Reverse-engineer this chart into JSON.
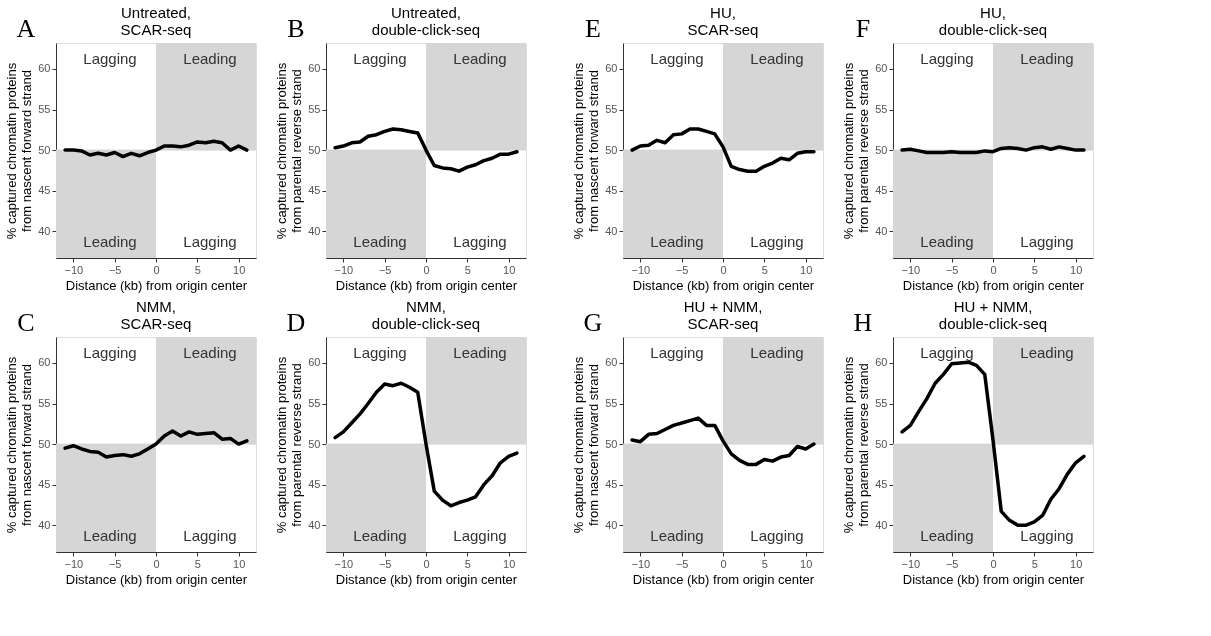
{
  "chart_data": [
    {
      "type": "line",
      "title": "Untreated,\nSCAR-seq",
      "xlabel": "Distance (kb) from origin center",
      "ylabel": "% captured chromatin proteins\nfrom nascent forward strand",
      "x": [
        -11,
        -10,
        -9,
        -8,
        -7,
        -6,
        -5,
        -4,
        -3,
        -2,
        -1,
        0,
        1,
        2,
        3,
        4,
        5,
        6,
        7,
        8,
        9,
        10,
        11
      ],
      "series": [
        {
          "color": "#000000",
          "values": [
            50.0,
            50.0,
            49.9,
            49.4,
            49.6,
            49.4,
            49.7,
            49.2,
            49.6,
            49.3,
            49.7,
            50.0,
            50.5,
            50.5,
            50.4,
            50.6,
            51.0,
            50.9,
            51.1,
            50.9,
            50.0,
            50.5,
            50.0
          ]
        }
      ],
      "xlim": [
        -12.1,
        12.1
      ],
      "ylim": [
        36.7,
        63.2
      ],
      "xticks": [
        -10,
        -5,
        0,
        5,
        10
      ],
      "yticks": [
        40,
        45,
        50,
        55,
        60
      ],
      "bands": [
        {
          "axis": "x",
          "from": 0,
          "to": 12.1,
          "color": "#d6d6d6"
        },
        {
          "axis": "x",
          "from": -12.1,
          "to": 0,
          "color": "#d6d6d6"
        }
      ],
      "ref_lines": [
        {
          "axis": "y",
          "value": 50,
          "color": "#d6d6d6"
        }
      ],
      "annotations": [
        "A",
        "Lagging",
        "Leading",
        "Leading",
        "Lagging"
      ]
    },
    {
      "type": "line",
      "title": "Untreated,\ndouble-click-seq",
      "xlabel": "Distance (kb) from origin center",
      "ylabel": "% captured chromatin proteins\nfrom parental reverse strand",
      "x": [
        -11,
        -10,
        -9,
        -8,
        -7,
        -6,
        -5,
        -4,
        -3,
        -2,
        -1,
        0,
        1,
        2,
        3,
        4,
        5,
        6,
        7,
        8,
        9,
        10,
        11
      ],
      "series": [
        {
          "color": "#000000",
          "values": [
            50.3,
            50.5,
            50.9,
            51.0,
            51.7,
            51.9,
            52.3,
            52.6,
            52.5,
            52.3,
            52.1,
            50.0,
            48.1,
            47.8,
            47.7,
            47.4,
            47.9,
            48.2,
            48.7,
            49.0,
            49.5,
            49.5,
            49.8
          ]
        }
      ],
      "xlim": [
        -12.1,
        12.1
      ],
      "ylim": [
        36.7,
        63.2
      ],
      "xticks": [
        -10,
        -5,
        0,
        5,
        10
      ],
      "yticks": [
        40,
        45,
        50,
        55,
        60
      ],
      "bands": [
        {
          "axis": "x",
          "from": 0,
          "to": 12.1,
          "color": "#d6d6d6"
        },
        {
          "axis": "x",
          "from": -12.1,
          "to": 0,
          "color": "#d6d6d6"
        }
      ],
      "ref_lines": [
        {
          "axis": "y",
          "value": 50,
          "color": "#d6d6d6"
        }
      ],
      "annotations": [
        "B",
        "Lagging",
        "Leading",
        "Leading",
        "Lagging"
      ]
    },
    {
      "type": "line",
      "title": "HU,\nSCAR-seq",
      "xlabel": "Distance (kb) from origin center",
      "ylabel": "% captured chromatin proteins\nfrom nascent forward strand",
      "x": [
        -11,
        -10,
        -9,
        -8,
        -7,
        -6,
        -5,
        -4,
        -3,
        -2,
        -1,
        0,
        1,
        2,
        3,
        4,
        5,
        6,
        7,
        8,
        9,
        10,
        11
      ],
      "series": [
        {
          "color": "#000000",
          "values": [
            50.0,
            50.5,
            50.6,
            51.2,
            50.9,
            51.9,
            52.0,
            52.6,
            52.6,
            52.3,
            52.0,
            50.4,
            48.0,
            47.6,
            47.4,
            47.4,
            48.0,
            48.4,
            49.0,
            48.8,
            49.6,
            49.8,
            49.8
          ]
        }
      ],
      "xlim": [
        -12.1,
        12.1
      ],
      "ylim": [
        36.7,
        63.2
      ],
      "xticks": [
        -10,
        -5,
        0,
        5,
        10
      ],
      "yticks": [
        40,
        45,
        50,
        55,
        60
      ],
      "bands": [
        {
          "axis": "x",
          "from": 0,
          "to": 12.1,
          "color": "#d6d6d6"
        },
        {
          "axis": "x",
          "from": -12.1,
          "to": 0,
          "color": "#d6d6d6"
        }
      ],
      "ref_lines": [
        {
          "axis": "y",
          "value": 50,
          "color": "#d6d6d6"
        }
      ],
      "annotations": [
        "E",
        "Lagging",
        "Leading",
        "Leading",
        "Lagging"
      ]
    },
    {
      "type": "line",
      "title": "HU,\ndouble-click-seq",
      "xlabel": "Distance (kb) from origin center",
      "ylabel": "% captured chromatin proteins\nfrom parental reverse strand",
      "x": [
        -11,
        -10,
        -9,
        -8,
        -7,
        -6,
        -5,
        -4,
        -3,
        -2,
        -1,
        0,
        1,
        2,
        3,
        4,
        5,
        6,
        7,
        8,
        9,
        10,
        11
      ],
      "series": [
        {
          "color": "#000000",
          "values": [
            50.0,
            50.1,
            49.9,
            49.7,
            49.7,
            49.7,
            49.8,
            49.7,
            49.7,
            49.7,
            49.9,
            49.8,
            50.2,
            50.3,
            50.2,
            50.0,
            50.3,
            50.4,
            50.1,
            50.4,
            50.2,
            50.0,
            50.0
          ]
        }
      ],
      "xlim": [
        -12.1,
        12.1
      ],
      "ylim": [
        36.7,
        63.2
      ],
      "xticks": [
        -10,
        -5,
        0,
        5,
        10
      ],
      "yticks": [
        40,
        45,
        50,
        55,
        60
      ],
      "bands": [
        {
          "axis": "x",
          "from": 0,
          "to": 12.1,
          "color": "#d6d6d6"
        },
        {
          "axis": "x",
          "from": -12.1,
          "to": 0,
          "color": "#d6d6d6"
        }
      ],
      "ref_lines": [
        {
          "axis": "y",
          "value": 50,
          "color": "#d6d6d6"
        }
      ],
      "annotations": [
        "F",
        "Lagging",
        "Leading",
        "Leading",
        "Lagging"
      ]
    },
    {
      "type": "line",
      "title": "NMM,\nSCAR-seq",
      "xlabel": "Distance (kb) from origin center",
      "ylabel": "% captured chromatin proteins\nfrom nascent forward strand",
      "x": [
        -11,
        -10,
        -9,
        -8,
        -7,
        -6,
        -5,
        -4,
        -3,
        -2,
        -1,
        0,
        1,
        2,
        3,
        4,
        5,
        6,
        7,
        8,
        9,
        10,
        11
      ],
      "series": [
        {
          "color": "#000000",
          "values": [
            49.5,
            49.8,
            49.4,
            49.1,
            49.0,
            48.4,
            48.6,
            48.7,
            48.5,
            48.8,
            49.4,
            50.0,
            51.0,
            51.6,
            51.0,
            51.5,
            51.2,
            51.3,
            51.4,
            50.6,
            50.7,
            50.0,
            50.4
          ]
        }
      ],
      "xlim": [
        -12.1,
        12.1
      ],
      "ylim": [
        36.7,
        63.2
      ],
      "xticks": [
        -10,
        -5,
        0,
        5,
        10
      ],
      "yticks": [
        40,
        45,
        50,
        55,
        60
      ],
      "bands": [
        {
          "axis": "x",
          "from": 0,
          "to": 12.1,
          "color": "#d6d6d6"
        },
        {
          "axis": "x",
          "from": -12.1,
          "to": 0,
          "color": "#d6d6d6"
        }
      ],
      "ref_lines": [
        {
          "axis": "y",
          "value": 50,
          "color": "#d6d6d6"
        }
      ],
      "annotations": [
        "C",
        "Lagging",
        "Leading",
        "Leading",
        "Lagging"
      ]
    },
    {
      "type": "line",
      "title": "NMM,\ndouble-click-seq",
      "xlabel": "Distance (kb) from origin center",
      "ylabel": "% captured chromatin proteins\nfrom parental reverse strand",
      "x": [
        -11,
        -10,
        -9,
        -8,
        -7,
        -6,
        -5,
        -4,
        -3,
        -2,
        -1,
        0,
        1,
        2,
        3,
        4,
        5,
        6,
        7,
        8,
        9,
        10,
        11
      ],
      "series": [
        {
          "color": "#000000",
          "values": [
            50.8,
            51.5,
            52.6,
            53.7,
            55.0,
            56.4,
            57.4,
            57.2,
            57.5,
            57.0,
            56.4,
            50.0,
            44.2,
            43.1,
            42.4,
            42.8,
            43.1,
            43.5,
            45.0,
            46.1,
            47.7,
            48.5,
            48.9
          ]
        }
      ],
      "xlim": [
        -12.1,
        12.1
      ],
      "ylim": [
        36.7,
        63.2
      ],
      "xticks": [
        -10,
        -5,
        0,
        5,
        10
      ],
      "yticks": [
        40,
        45,
        50,
        55,
        60
      ],
      "bands": [
        {
          "axis": "x",
          "from": 0,
          "to": 12.1,
          "color": "#d6d6d6"
        },
        {
          "axis": "x",
          "from": -12.1,
          "to": 0,
          "color": "#d6d6d6"
        }
      ],
      "ref_lines": [
        {
          "axis": "y",
          "value": 50,
          "color": "#d6d6d6"
        }
      ],
      "annotations": [
        "D",
        "Lagging",
        "Leading",
        "Leading",
        "Lagging"
      ]
    },
    {
      "type": "line",
      "title": "HU + NMM,\nSCAR-seq",
      "xlabel": "Distance (kb) from origin center",
      "ylabel": "% captured chromatin proteins\nfrom nascent forward strand",
      "x": [
        -11,
        -10,
        -9,
        -8,
        -7,
        -6,
        -5,
        -4,
        -3,
        -2,
        -1,
        0,
        1,
        2,
        3,
        4,
        5,
        6,
        7,
        8,
        9,
        10,
        11
      ],
      "series": [
        {
          "color": "#000000",
          "values": [
            50.5,
            50.3,
            51.2,
            51.3,
            51.8,
            52.3,
            52.6,
            52.9,
            53.2,
            52.3,
            52.3,
            50.4,
            48.8,
            48.0,
            47.5,
            47.5,
            48.1,
            47.9,
            48.4,
            48.6,
            49.7,
            49.4,
            50.0
          ]
        }
      ],
      "xlim": [
        -12.1,
        12.1
      ],
      "ylim": [
        36.7,
        63.2
      ],
      "xticks": [
        -10,
        -5,
        0,
        5,
        10
      ],
      "yticks": [
        40,
        45,
        50,
        55,
        60
      ],
      "bands": [
        {
          "axis": "x",
          "from": 0,
          "to": 12.1,
          "color": "#d6d6d6"
        },
        {
          "axis": "x",
          "from": -12.1,
          "to": 0,
          "color": "#d6d6d6"
        }
      ],
      "ref_lines": [
        {
          "axis": "y",
          "value": 50,
          "color": "#d6d6d6"
        }
      ],
      "annotations": [
        "G",
        "Lagging",
        "Leading",
        "Leading",
        "Lagging"
      ]
    },
    {
      "type": "line",
      "title": "HU + NMM,\ndouble-click-seq",
      "xlabel": "Distance (kb) from origin center",
      "ylabel": "% captured chromatin proteins\nfrom parental reverse strand",
      "x": [
        -11,
        -10,
        -9,
        -8,
        -7,
        -6,
        -5,
        -4,
        -3,
        -2,
        -1,
        0,
        1,
        2,
        3,
        4,
        5,
        6,
        7,
        8,
        9,
        10,
        11
      ],
      "series": [
        {
          "color": "#000000",
          "values": [
            51.5,
            52.3,
            54.0,
            55.6,
            57.5,
            58.6,
            59.9,
            60.0,
            60.1,
            59.7,
            58.6,
            50.5,
            41.7,
            40.6,
            40.0,
            40.0,
            40.4,
            41.2,
            43.2,
            44.5,
            46.3,
            47.7,
            48.5
          ]
        }
      ],
      "xlim": [
        -12.1,
        12.1
      ],
      "ylim": [
        36.7,
        63.2
      ],
      "xticks": [
        -10,
        -5,
        0,
        5,
        10
      ],
      "yticks": [
        40,
        45,
        50,
        55,
        60
      ],
      "bands": [
        {
          "axis": "x",
          "from": 0,
          "to": 12.1,
          "color": "#d6d6d6"
        },
        {
          "axis": "x",
          "from": -12.1,
          "to": 0,
          "color": "#d6d6d6"
        }
      ],
      "ref_lines": [
        {
          "axis": "y",
          "value": 50,
          "color": "#d6d6d6"
        }
      ],
      "annotations": [
        "H",
        "Lagging",
        "Leading",
        "Leading",
        "Lagging"
      ]
    }
  ]
}
